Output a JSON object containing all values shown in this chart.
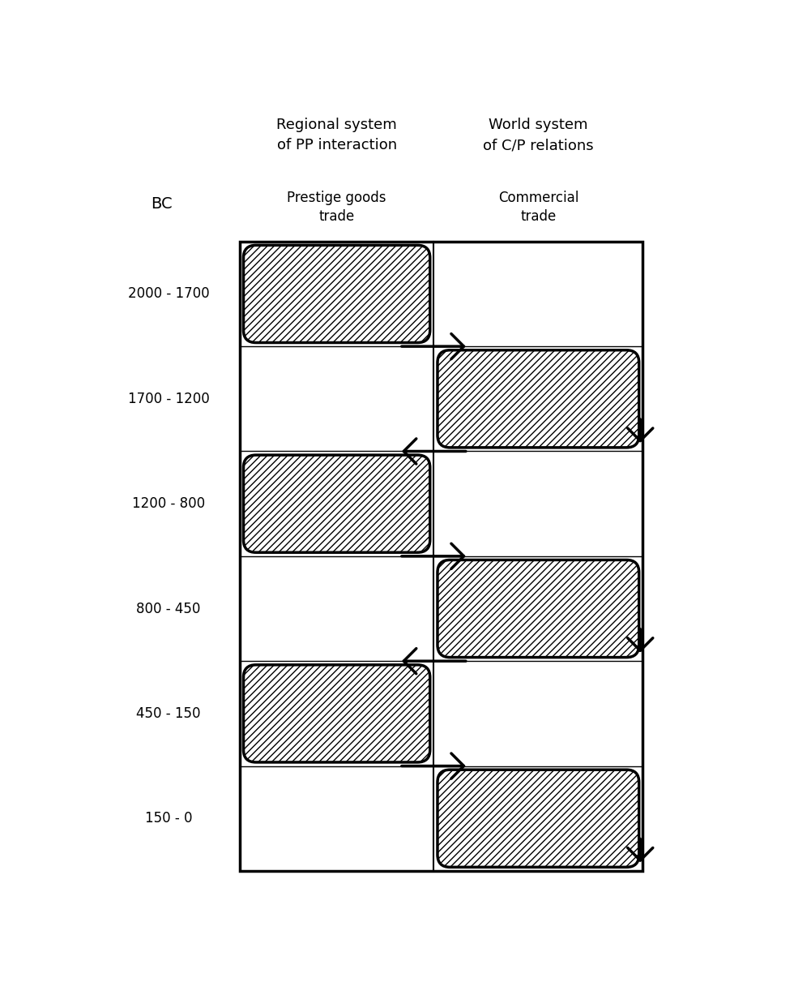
{
  "header_col1_line1": "Regional system",
  "header_col1_line2": "of PP interaction",
  "header_col2_line1": "World system",
  "header_col2_line2": "of C/P relations",
  "subheader_col1": "Prestige goods\ntrade",
  "subheader_col2": "Commercial\ntrade",
  "subheader_left": "BC",
  "periods": [
    {
      "label": "2000 - 1700",
      "active": "left"
    },
    {
      "label": "1700 - 1200",
      "active": "right"
    },
    {
      "label": "1200 - 800",
      "active": "left"
    },
    {
      "label": "800 - 450",
      "active": "right"
    },
    {
      "label": "450 - 150",
      "active": "left"
    },
    {
      "label": "150 - 0",
      "active": "right"
    }
  ],
  "bg_color": "#ffffff",
  "text_color": "#000000",
  "font_family": "sans-serif",
  "header_fontsize": 13,
  "label_fontsize": 12,
  "period_label_fontsize": 12
}
